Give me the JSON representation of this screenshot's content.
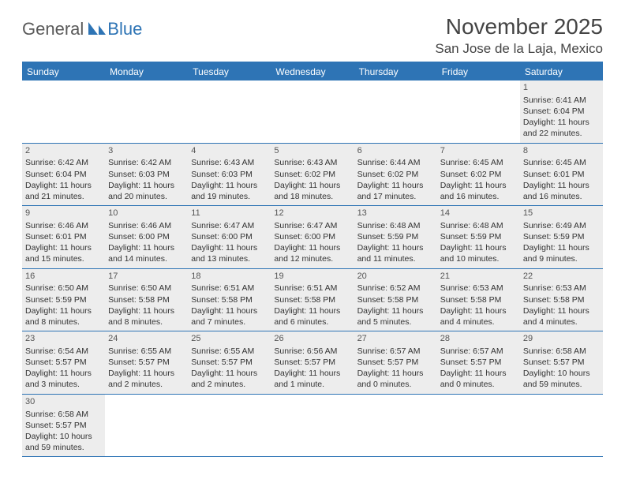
{
  "brand": {
    "part1": "General",
    "part2": "Blue"
  },
  "title": "November 2025",
  "location": "San Jose de la Laja, Mexico",
  "colors": {
    "accent": "#2e74b5",
    "cell_bg": "#ededed",
    "text": "#333333",
    "header_text": "#ffffff"
  },
  "weekdays": [
    "Sunday",
    "Monday",
    "Tuesday",
    "Wednesday",
    "Thursday",
    "Friday",
    "Saturday"
  ],
  "weeks": [
    [
      null,
      null,
      null,
      null,
      null,
      null,
      {
        "n": "1",
        "sunrise": "Sunrise: 6:41 AM",
        "sunset": "Sunset: 6:04 PM",
        "d1": "Daylight: 11 hours",
        "d2": "and 22 minutes."
      }
    ],
    [
      {
        "n": "2",
        "sunrise": "Sunrise: 6:42 AM",
        "sunset": "Sunset: 6:04 PM",
        "d1": "Daylight: 11 hours",
        "d2": "and 21 minutes."
      },
      {
        "n": "3",
        "sunrise": "Sunrise: 6:42 AM",
        "sunset": "Sunset: 6:03 PM",
        "d1": "Daylight: 11 hours",
        "d2": "and 20 minutes."
      },
      {
        "n": "4",
        "sunrise": "Sunrise: 6:43 AM",
        "sunset": "Sunset: 6:03 PM",
        "d1": "Daylight: 11 hours",
        "d2": "and 19 minutes."
      },
      {
        "n": "5",
        "sunrise": "Sunrise: 6:43 AM",
        "sunset": "Sunset: 6:02 PM",
        "d1": "Daylight: 11 hours",
        "d2": "and 18 minutes."
      },
      {
        "n": "6",
        "sunrise": "Sunrise: 6:44 AM",
        "sunset": "Sunset: 6:02 PM",
        "d1": "Daylight: 11 hours",
        "d2": "and 17 minutes."
      },
      {
        "n": "7",
        "sunrise": "Sunrise: 6:45 AM",
        "sunset": "Sunset: 6:02 PM",
        "d1": "Daylight: 11 hours",
        "d2": "and 16 minutes."
      },
      {
        "n": "8",
        "sunrise": "Sunrise: 6:45 AM",
        "sunset": "Sunset: 6:01 PM",
        "d1": "Daylight: 11 hours",
        "d2": "and 16 minutes."
      }
    ],
    [
      {
        "n": "9",
        "sunrise": "Sunrise: 6:46 AM",
        "sunset": "Sunset: 6:01 PM",
        "d1": "Daylight: 11 hours",
        "d2": "and 15 minutes."
      },
      {
        "n": "10",
        "sunrise": "Sunrise: 6:46 AM",
        "sunset": "Sunset: 6:00 PM",
        "d1": "Daylight: 11 hours",
        "d2": "and 14 minutes."
      },
      {
        "n": "11",
        "sunrise": "Sunrise: 6:47 AM",
        "sunset": "Sunset: 6:00 PM",
        "d1": "Daylight: 11 hours",
        "d2": "and 13 minutes."
      },
      {
        "n": "12",
        "sunrise": "Sunrise: 6:47 AM",
        "sunset": "Sunset: 6:00 PM",
        "d1": "Daylight: 11 hours",
        "d2": "and 12 minutes."
      },
      {
        "n": "13",
        "sunrise": "Sunrise: 6:48 AM",
        "sunset": "Sunset: 5:59 PM",
        "d1": "Daylight: 11 hours",
        "d2": "and 11 minutes."
      },
      {
        "n": "14",
        "sunrise": "Sunrise: 6:48 AM",
        "sunset": "Sunset: 5:59 PM",
        "d1": "Daylight: 11 hours",
        "d2": "and 10 minutes."
      },
      {
        "n": "15",
        "sunrise": "Sunrise: 6:49 AM",
        "sunset": "Sunset: 5:59 PM",
        "d1": "Daylight: 11 hours",
        "d2": "and 9 minutes."
      }
    ],
    [
      {
        "n": "16",
        "sunrise": "Sunrise: 6:50 AM",
        "sunset": "Sunset: 5:59 PM",
        "d1": "Daylight: 11 hours",
        "d2": "and 8 minutes."
      },
      {
        "n": "17",
        "sunrise": "Sunrise: 6:50 AM",
        "sunset": "Sunset: 5:58 PM",
        "d1": "Daylight: 11 hours",
        "d2": "and 8 minutes."
      },
      {
        "n": "18",
        "sunrise": "Sunrise: 6:51 AM",
        "sunset": "Sunset: 5:58 PM",
        "d1": "Daylight: 11 hours",
        "d2": "and 7 minutes."
      },
      {
        "n": "19",
        "sunrise": "Sunrise: 6:51 AM",
        "sunset": "Sunset: 5:58 PM",
        "d1": "Daylight: 11 hours",
        "d2": "and 6 minutes."
      },
      {
        "n": "20",
        "sunrise": "Sunrise: 6:52 AM",
        "sunset": "Sunset: 5:58 PM",
        "d1": "Daylight: 11 hours",
        "d2": "and 5 minutes."
      },
      {
        "n": "21",
        "sunrise": "Sunrise: 6:53 AM",
        "sunset": "Sunset: 5:58 PM",
        "d1": "Daylight: 11 hours",
        "d2": "and 4 minutes."
      },
      {
        "n": "22",
        "sunrise": "Sunrise: 6:53 AM",
        "sunset": "Sunset: 5:58 PM",
        "d1": "Daylight: 11 hours",
        "d2": "and 4 minutes."
      }
    ],
    [
      {
        "n": "23",
        "sunrise": "Sunrise: 6:54 AM",
        "sunset": "Sunset: 5:57 PM",
        "d1": "Daylight: 11 hours",
        "d2": "and 3 minutes."
      },
      {
        "n": "24",
        "sunrise": "Sunrise: 6:55 AM",
        "sunset": "Sunset: 5:57 PM",
        "d1": "Daylight: 11 hours",
        "d2": "and 2 minutes."
      },
      {
        "n": "25",
        "sunrise": "Sunrise: 6:55 AM",
        "sunset": "Sunset: 5:57 PM",
        "d1": "Daylight: 11 hours",
        "d2": "and 2 minutes."
      },
      {
        "n": "26",
        "sunrise": "Sunrise: 6:56 AM",
        "sunset": "Sunset: 5:57 PM",
        "d1": "Daylight: 11 hours",
        "d2": "and 1 minute."
      },
      {
        "n": "27",
        "sunrise": "Sunrise: 6:57 AM",
        "sunset": "Sunset: 5:57 PM",
        "d1": "Daylight: 11 hours",
        "d2": "and 0 minutes."
      },
      {
        "n": "28",
        "sunrise": "Sunrise: 6:57 AM",
        "sunset": "Sunset: 5:57 PM",
        "d1": "Daylight: 11 hours",
        "d2": "and 0 minutes."
      },
      {
        "n": "29",
        "sunrise": "Sunrise: 6:58 AM",
        "sunset": "Sunset: 5:57 PM",
        "d1": "Daylight: 10 hours",
        "d2": "and 59 minutes."
      }
    ],
    [
      {
        "n": "30",
        "sunrise": "Sunrise: 6:58 AM",
        "sunset": "Sunset: 5:57 PM",
        "d1": "Daylight: 10 hours",
        "d2": "and 59 minutes."
      },
      null,
      null,
      null,
      null,
      null,
      null
    ]
  ]
}
